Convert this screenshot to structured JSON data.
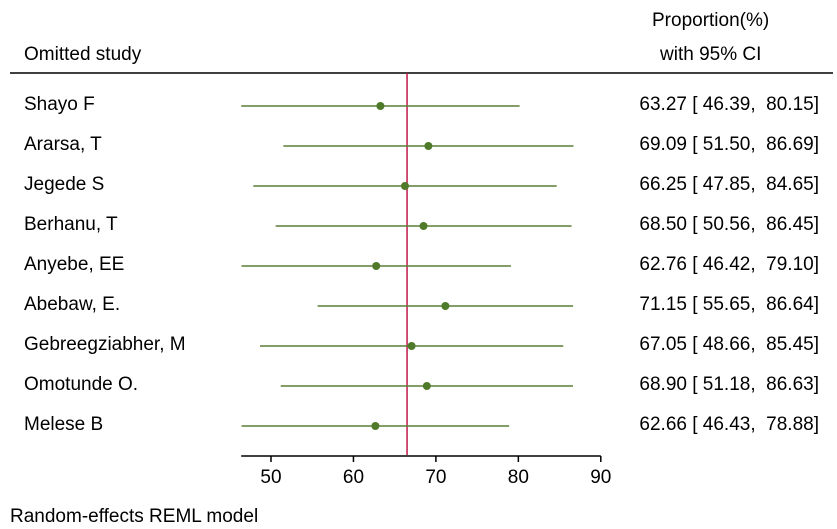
{
  "header": {
    "study_col": "Omitted study",
    "est_col_line1": "Proportion(%)",
    "est_col_line2": "with 95% CI"
  },
  "footnote": "Random-effects REML model",
  "colors": {
    "marker": "#4e7a2a",
    "ci_line": "#5a7f36",
    "reference_line": "#c0184a",
    "axis": "#000000"
  },
  "chart_data": {
    "type": "forest",
    "x_axis": {
      "ticks": [
        50,
        60,
        70,
        80,
        90
      ],
      "range": [
        46.39,
        90
      ]
    },
    "reference_value": 66.5,
    "studies": [
      {
        "label": "Shayo F",
        "estimate": 63.27,
        "lower": 46.39,
        "upper": 80.15,
        "text": "63.27 [ 46.39,  80.15]"
      },
      {
        "label": "Ararsa, T",
        "estimate": 69.09,
        "lower": 51.5,
        "upper": 86.69,
        "text": "69.09 [ 51.50,  86.69]"
      },
      {
        "label": "Jegede S",
        "estimate": 66.25,
        "lower": 47.85,
        "upper": 84.65,
        "text": "66.25 [ 47.85,  84.65]"
      },
      {
        "label": "Berhanu, T",
        "estimate": 68.5,
        "lower": 50.56,
        "upper": 86.45,
        "text": "68.50 [ 50.56,  86.45]"
      },
      {
        "label": "Anyebe, EE",
        "estimate": 62.76,
        "lower": 46.42,
        "upper": 79.1,
        "text": "62.76 [ 46.42,  79.10]"
      },
      {
        "label": "Abebaw, E.",
        "estimate": 71.15,
        "lower": 55.65,
        "upper": 86.64,
        "text": "71.15 [ 55.65,  86.64]"
      },
      {
        "label": "Gebreegziabher, M",
        "estimate": 67.05,
        "lower": 48.66,
        "upper": 85.45,
        "text": "67.05 [ 48.66,  85.45]"
      },
      {
        "label": "Omotunde O.",
        "estimate": 68.9,
        "lower": 51.18,
        "upper": 86.63,
        "text": "68.90 [ 51.18,  86.63]"
      },
      {
        "label": "Melese B",
        "estimate": 62.66,
        "lower": 46.43,
        "upper": 78.88,
        "text": "62.66 [ 46.43,  78.88]"
      }
    ]
  }
}
